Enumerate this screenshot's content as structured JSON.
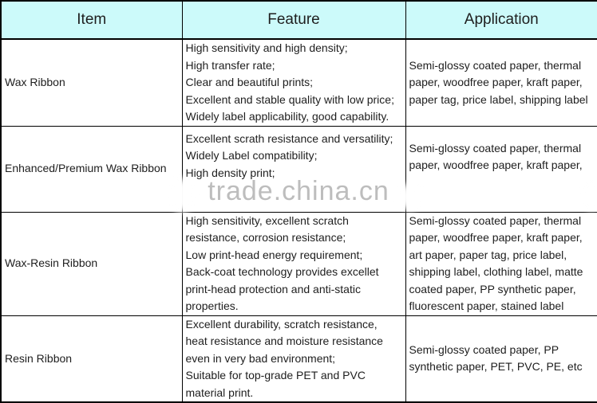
{
  "colors": {
    "header_bg": "#ccfafa",
    "border": "#000000",
    "text": "#1e1e1e",
    "watermark": "#bdbdbd"
  },
  "watermark": {
    "text": "trade.china.cn"
  },
  "table": {
    "headers": {
      "item": "Item",
      "feature": "Feature",
      "application": "Application"
    },
    "rows": [
      {
        "item": "Wax Ribbon",
        "feature": [
          "High sensitivity and high density;",
          "High transfer rate;",
          "Clear and beautiful prints;",
          "Excellent and stable quality with low price;",
          "Widely label applicability, good capability."
        ],
        "application": [
          "Semi-glossy coated paper, thermal",
          "paper, woodfree paper, kraft paper,",
          "paper tag, price label, shipping label"
        ]
      },
      {
        "item": "Enhanced/Premium Wax Ribbon",
        "feature": [
          "Excellent scrath resistance and versatility;",
          "Widely Label compatibility;",
          "High density print;"
        ],
        "application": [
          "Semi-glossy coated paper, thermal",
          "paper, woodfree paper, kraft paper,"
        ]
      },
      {
        "item": "Wax-Resin Ribbon",
        "feature": [
          "High sensitivity, excellent scratch",
          "resistance, corrosion resistance;",
          "Low print-head energy requirement;",
          "Back-coat technology provides excellet",
          "print-head protection and anti-static",
          "properties."
        ],
        "application": [
          "Semi-glossy coated paper, thermal",
          "paper, woodfree paper, kraft paper,",
          "art paper, paper tag, price label,",
          "shipping label, clothing label, matte",
          "coated paper, PP synthetic paper,",
          "fluorescent paper, stained label"
        ]
      },
      {
        "item": "Resin Ribbon",
        "feature": [
          "Excellent durability, scratch resistance,",
          "heat resistance and moisture resistance",
          "even in very bad environment;",
          "Suitable for top-grade PET and PVC",
          "material print."
        ],
        "application": [
          "Semi-glossy coated paper, PP",
          "synthetic paper, PET, PVC, PE, etc"
        ]
      }
    ]
  }
}
